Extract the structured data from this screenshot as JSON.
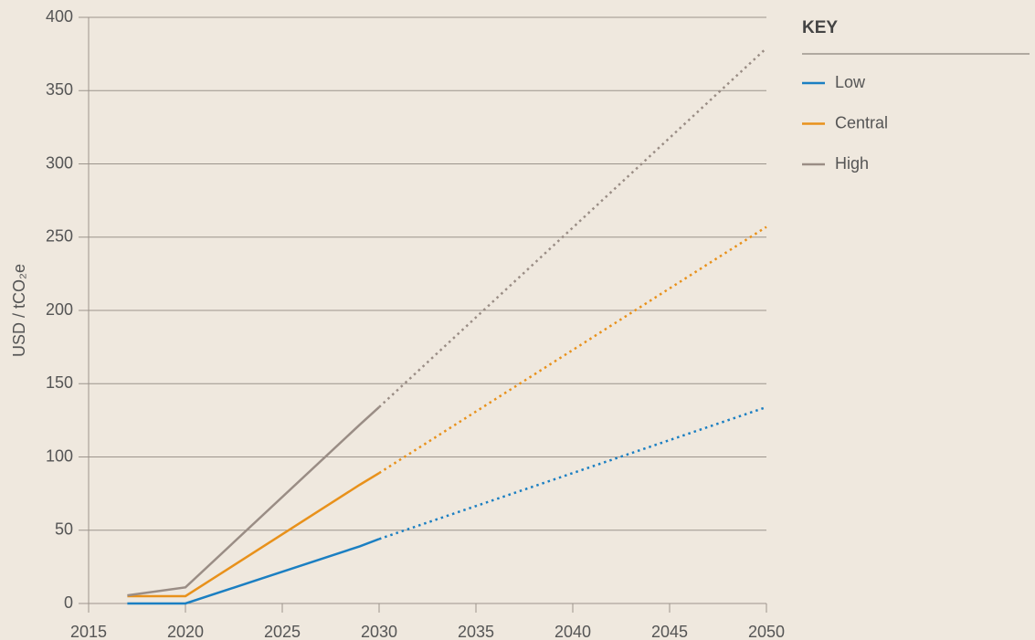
{
  "chart_data": {
    "type": "line",
    "y_label": "USD / tCO₂e",
    "legend_title": "KEY",
    "legend": "right",
    "grid": true,
    "projection_start": 2030,
    "x": [
      2017,
      2020,
      2029,
      2030,
      2050
    ],
    "series": [
      {
        "name": "Low",
        "color": "#1b7fc2",
        "values": [
          0,
          0,
          39,
          44,
          134
        ]
      },
      {
        "name": "Central",
        "color": "#e8911b",
        "values": [
          5,
          5,
          81,
          89,
          257
        ]
      },
      {
        "name": "High",
        "color": "#9a8d85",
        "values": [
          5.5,
          11,
          122,
          134,
          379
        ]
      }
    ],
    "xlim": [
      2015,
      2050
    ],
    "xticks": [
      2015,
      2020,
      2025,
      2030,
      2035,
      2040,
      2045,
      2050
    ],
    "ylim": [
      0,
      400
    ],
    "yticks": [
      0,
      50,
      100,
      150,
      200,
      250,
      300,
      350,
      400
    ]
  }
}
